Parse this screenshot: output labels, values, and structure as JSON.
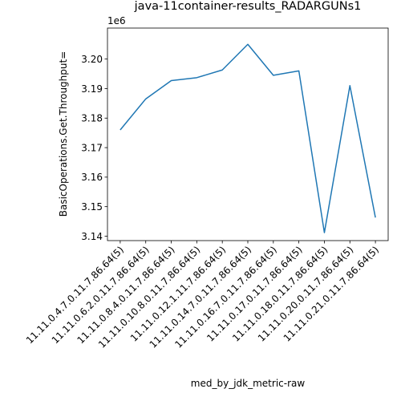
{
  "chart_data": {
    "type": "line",
    "title": "java-11container-results_RADARGUNs1",
    "xlabel": "med_by_jdk_metric-raw",
    "ylabel": "BasicOperations.Get.Throughput=",
    "y_offset_label": "1e6",
    "y_scale_factor": 1000000,
    "ylim": [
      3.1385,
      3.2105
    ],
    "yticks": [
      3.14,
      3.15,
      3.16,
      3.17,
      3.18,
      3.19,
      3.2
    ],
    "ytick_labels": [
      "3.14",
      "3.15",
      "3.16",
      "3.17",
      "3.18",
      "3.19",
      "3.20"
    ],
    "grid": false,
    "line_color": "#1f77b4",
    "categories": [
      "11.11.0.4.7.0.11.7.86.64(5)",
      "11.11.0.6.2.0.11.7.86.64(5)",
      "11.11.0.8.4.0.11.7.86.64(5)",
      "11.11.0.10.8.0.11.7.86.64(5)",
      "11.11.0.12.1.11.7.86.64(5)",
      "11.11.0.14.7.0.11.7.86.64(5)",
      "11.11.0.16.7.0.11.7.86.64(5)",
      "11.11.0.17.0.11.7.86.64(5)",
      "11.11.0.18.0.11.7.86.64(5)",
      "11.11.0.20.0.11.7.86.64(5)",
      "11.11.0.21.0.11.7.86.64(5)"
    ],
    "series": [
      {
        "values": [
          3176000,
          3186500,
          3192700,
          3193700,
          3196300,
          3205000,
          3194500,
          3196000,
          3141200,
          3191000,
          3146300
        ]
      }
    ]
  }
}
